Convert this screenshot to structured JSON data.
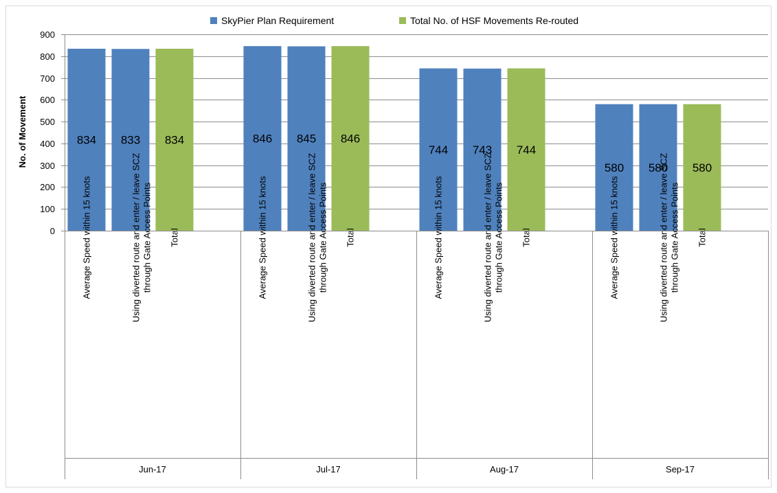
{
  "chart_data": {
    "type": "bar",
    "title": "",
    "ylabel": "No. of Movement",
    "xlabel": "",
    "ylim": [
      0,
      900
    ],
    "yticks": [
      0,
      100,
      200,
      300,
      400,
      500,
      600,
      700,
      800,
      900
    ],
    "grid": true,
    "legend_position": "top",
    "legend": [
      {
        "name": "SkyPier Plan Requirement",
        "color": "#4f81bd"
      },
      {
        "name": "Total No. of HSF Movements Re-routed",
        "color": "#9bbb59"
      }
    ],
    "groups": [
      {
        "label": "Jun-17",
        "bars": [
          {
            "label": [
              "Average Speed within 15 knots"
            ],
            "value": 834,
            "series": "SkyPier Plan Requirement"
          },
          {
            "label": [
              "Using diverted route and enter / leave SCZ",
              "through Gate Access Points"
            ],
            "value": 833,
            "series": "SkyPier Plan Requirement"
          },
          {
            "label": [
              "Total"
            ],
            "value": 834,
            "series": "Total No. of HSF Movements Re-routed"
          }
        ]
      },
      {
        "label": "Jul-17",
        "bars": [
          {
            "label": [
              "Average Speed within 15 knots"
            ],
            "value": 846,
            "series": "SkyPier Plan Requirement"
          },
          {
            "label": [
              "Using diverted route and enter / leave SCZ",
              "through Gate Access Points"
            ],
            "value": 845,
            "series": "SkyPier Plan Requirement"
          },
          {
            "label": [
              "Total"
            ],
            "value": 846,
            "series": "Total No. of HSF Movements Re-routed"
          }
        ]
      },
      {
        "label": "Aug-17",
        "bars": [
          {
            "label": [
              "Average Speed within 15 knots"
            ],
            "value": 744,
            "series": "SkyPier Plan Requirement"
          },
          {
            "label": [
              "Using diverted route and enter / leave SCZ",
              "through Gate Access Points"
            ],
            "value": 743,
            "series": "SkyPier Plan Requirement"
          },
          {
            "label": [
              "Total"
            ],
            "value": 744,
            "series": "Total No. of HSF Movements Re-routed"
          }
        ]
      },
      {
        "label": "Sep-17",
        "bars": [
          {
            "label": [
              "Average Speed within 15 knots"
            ],
            "value": 580,
            "series": "SkyPier Plan Requirement"
          },
          {
            "label": [
              "Using diverted route and enter / leave SCZ",
              "through Gate Access Points"
            ],
            "value": 580,
            "series": "SkyPier Plan Requirement"
          },
          {
            "label": [
              "Total"
            ],
            "value": 580,
            "series": "Total No. of HSF Movements Re-routed"
          }
        ]
      }
    ]
  }
}
